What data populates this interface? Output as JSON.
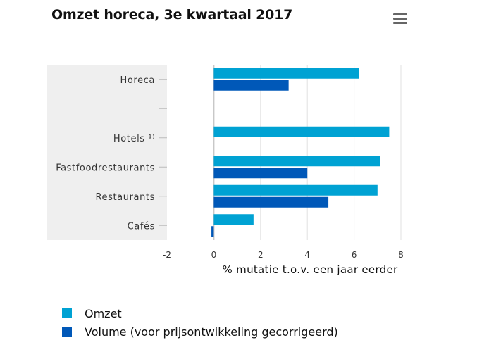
{
  "title": "Omzet horeca, 3e kwartaal 2017",
  "menu_icon": "hamburger-menu-icon",
  "colors": {
    "omzet": "#00a2d3",
    "volume": "#0058b8"
  },
  "legend": [
    {
      "label": "Omzet",
      "color": "#00a2d3"
    },
    {
      "label": "Volume (voor prijsontwikkeling gecorrigeerd)",
      "color": "#0058b8"
    }
  ],
  "chart_data": {
    "type": "bar",
    "orientation": "horizontal",
    "categories": [
      "Horeca",
      "",
      "Hotels ¹⁾",
      "Fastfoodrestaurants",
      "Restaurants",
      "Cafés"
    ],
    "series": [
      {
        "name": "Omzet",
        "values": [
          6.2,
          null,
          7.5,
          7.1,
          7.0,
          1.7
        ]
      },
      {
        "name": "Volume (voor prijsontwikkeling gecorrigeerd)",
        "values": [
          3.2,
          null,
          null,
          4.0,
          4.9,
          -0.1
        ]
      }
    ],
    "xlabel": "% mutatie t.o.v. een jaar eerder",
    "xlim": [
      -2,
      8
    ],
    "xticks": [
      -2,
      0,
      2,
      4,
      6,
      8
    ],
    "grid": true,
    "legend_position": "bottom"
  }
}
